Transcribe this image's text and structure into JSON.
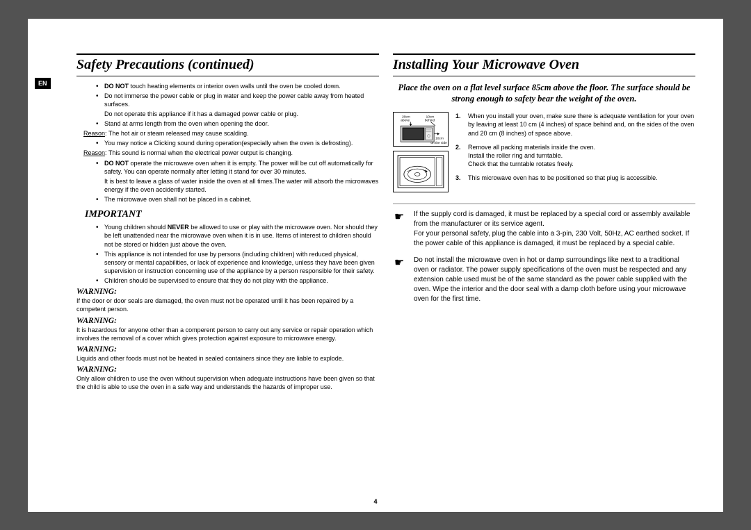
{
  "meta": {
    "lang_badge": "EN",
    "page_number": "4"
  },
  "left": {
    "title": "Safety Precautions (continued)",
    "bullets_top": [
      {
        "html": "<b>DO NOT</b> touch heating elements or interior oven walls until the oven be cooled down."
      },
      {
        "html": "Do not immerse the power cable or plug in water and keep the power cable away from heated surfaces."
      },
      {
        "sub": "Do not operate this appliance if it has a damaged power cable or plug."
      },
      {
        "html": "Stand at arms length from the oven when opening the door."
      }
    ],
    "reason1": "The hot air or steam released may cause scalding.",
    "bullets_mid": [
      {
        "html": "You may notice a Clicking sound during operation(especially when the oven is defrosting)."
      }
    ],
    "reason2": "This sound is normal when the electrical power output is changing.",
    "bullets_mid2": [
      {
        "html": "<b>DO NOT</b> operate the microwave oven when it is empty. The power will be cut off automatically for safety. You can operate normally after letting it stand for over 30 minutes."
      },
      {
        "sub": "It is best to leave a glass of water inside the oven at all times.The water will absorb the microwaves energy if the oven accidently started."
      },
      {
        "html": "The microwave oven shall not be placed in a cabinet."
      }
    ],
    "important_label": "IMPORTANT",
    "important_bullets": [
      {
        "html": "Young children should <b>NEVER</b> be allowed to use or play with the microwave oven. Nor should they be left unattended near the microwave oven when it is in use. Items of interest to children should not be stored or hidden just above the oven."
      },
      {
        "html": "This appliance is not intended for use by persons (including children) with reduced physical, sensory or mental capabilities, or lack of experience and knowledge, unless they have been given supervision or instruction concerning use of the appliance by a person responsible for their safety."
      },
      {
        "html": "Children should be supervised to ensure that they do not play with the appliance."
      }
    ],
    "warnings": [
      {
        "label": "WARNING:",
        "text": "If the door or door seals are damaged, the oven must not be operated until it has been repaired by a competent person."
      },
      {
        "label": "WARNING:",
        "text": "It is hazardous for anyone other than a comperent person to carry out any service or repair operation which involves the removal of a cover which gives protection against exposure to microwave energy."
      },
      {
        "label": "WARNING:",
        "text": "Liquids and other foods must not be heated in sealed containers since they are liable to explode."
      },
      {
        "label": "WARNING:",
        "text": "Only allow children to use the oven without supervision when adequate instructions have been given so that the child is able to use the oven in a safe way and understands the hazards of improper use."
      }
    ]
  },
  "right": {
    "title": "Installing Your Microwave Oven",
    "intro": "Place the oven on a flat level surface 85cm above the floor. The surface should be strong enough to safety bear the weight of the oven.",
    "clearance": {
      "above": "20cm above",
      "behind": "10cm behind",
      "side": "10cm on the side"
    },
    "steps": [
      "When you install your oven, make sure there is adequate ventilation for your oven by leaving at least 10 cm (4 inches) of space behind and, on the sides of the oven and 20 cm (8 inches) of space above.",
      "Remove all packing materials inside the oven.\nInstall the roller ring and turntable.\nCheck that the turntable rotates freely.",
      "This microwave oven has to be positioned so that plug is accessible."
    ],
    "pointers": [
      "If the supply cord is damaged, it must be replaced by a special cord or assembly available from the manufacturer or its service agent.\nFor your personal safety, plug the cable into a 3-pin, 230 Volt, 50Hz, AC earthed socket. If the power cable of this appliance is damaged, it must be replaced by a special cable.",
      "Do not install the microwave oven in hot or damp surroundings like next to a traditional oven or radiator. The power supply specifications of the oven must be respected and any extension cable used must be of the same standard as the power cable supplied with the oven. Wipe the interior and the door seal with a damp cloth before using your microwave oven for the first time."
    ]
  }
}
